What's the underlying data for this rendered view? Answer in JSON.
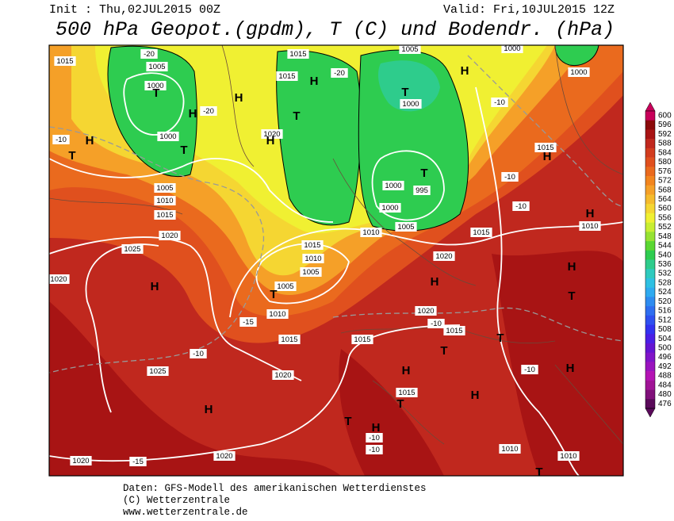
{
  "header": {
    "init": "Init : Thu,02JUL2015 00Z",
    "valid": "Valid: Fri,10JUL2015 12Z",
    "title": "500 hPa Geopot.(gpdm), T (C) und Bodendr. (hPa)"
  },
  "footer": {
    "lines": [
      "Daten: GFS-Modell des amerikanischen Wetterdienstes",
      "(C) Wetterzentrale",
      "www.wetterzentrale.de"
    ]
  },
  "colorbar": {
    "levels": [
      600,
      596,
      592,
      588,
      584,
      580,
      576,
      572,
      568,
      564,
      560,
      556,
      552,
      548,
      544,
      540,
      536,
      532,
      528,
      524,
      520,
      516,
      512,
      508,
      504,
      500,
      496,
      492,
      488,
      484,
      480,
      476
    ],
    "colors": [
      "#c8005a",
      "#8b0a0a",
      "#a81414",
      "#c0281e",
      "#d23c1e",
      "#e0501e",
      "#ea6a1e",
      "#f2851e",
      "#f5a028",
      "#f5bb2d",
      "#f5d632",
      "#f0f032",
      "#c8ee32",
      "#96e232",
      "#5ad732",
      "#2ecc50",
      "#2ecc8c",
      "#2ecabe",
      "#2ec0e2",
      "#2eaaf0",
      "#2e8cf0",
      "#2e6ef0",
      "#2e50f0",
      "#3232f0",
      "#4a1ee6",
      "#6414d2",
      "#8014c8",
      "#9a14be",
      "#b414b4",
      "#a01496",
      "#80107a",
      "#5a0a5a"
    ]
  },
  "map": {
    "labels": [
      "1015",
      "1005",
      "1000",
      "1000",
      "-20",
      "-20",
      "-10",
      "H",
      "T",
      "T",
      "T",
      "H",
      "H",
      "1015",
      "1015",
      "1020",
      "-20",
      "T",
      "H",
      "H",
      "1005",
      "1000",
      "T",
      "T",
      "995",
      "1000",
      "1000",
      "1005",
      "1010",
      "H",
      "1000",
      "1000",
      "-10",
      "1015",
      "H",
      "-10",
      "-10",
      "H",
      "1010",
      "1015",
      "1020",
      "H",
      "1005",
      "1010",
      "1015",
      "1020",
      "1025",
      "1020",
      "H",
      "1015",
      "1010",
      "1005",
      "1005",
      "T",
      "1010",
      "-15",
      "1015",
      "-10",
      "1025",
      "1020",
      "H",
      "1015",
      "H",
      "1015",
      "T",
      "T",
      "H",
      "H",
      "T",
      "1015",
      "1020",
      "-10",
      "T",
      "H",
      "T",
      "H",
      "-10",
      "1010",
      "1010",
      "1020",
      "1020",
      "-15",
      "-10",
      "-10",
      "T"
    ]
  }
}
